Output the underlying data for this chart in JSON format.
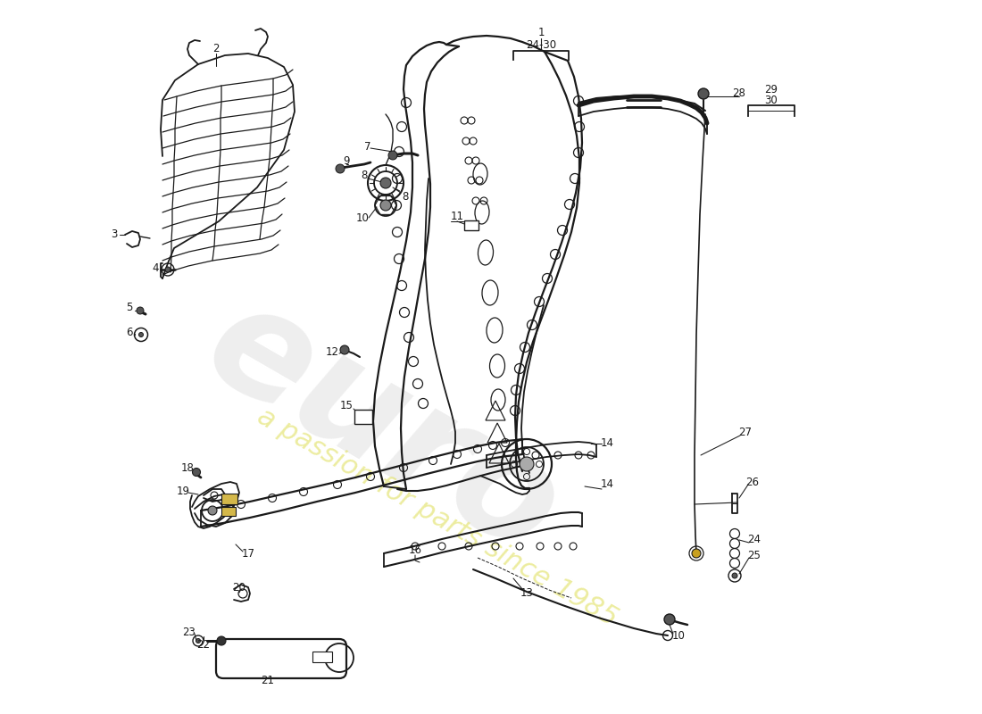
{
  "bg_color": "#ffffff",
  "line_color": "#1a1a1a",
  "gray": "#888888",
  "lw": 1.3
}
